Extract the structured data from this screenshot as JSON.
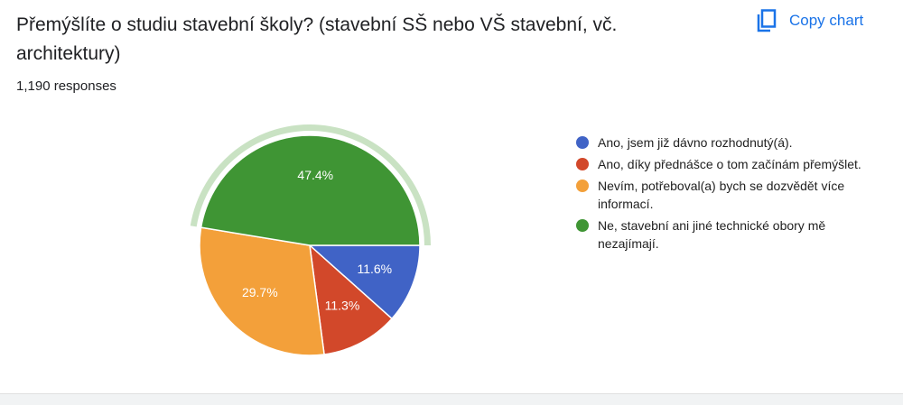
{
  "actions": {
    "copy_chart": "Copy chart"
  },
  "chart_data": {
    "type": "pie",
    "title": "Přemýšlíte o studiu stavební školy? (stavební SŠ nebo VŠ stavební, vč. architektury)",
    "subtitle": "1,190 responses",
    "categories": [
      "Ano, jsem již dávno rozhodnutý(á).",
      "Ano, díky přednášce o tom začínám přemýšlet.",
      "Nevím, potřeboval(a) bych se dozvědět více informací.",
      "Ne, stavební ani jiné technické obory mě nezajímají."
    ],
    "values": [
      11.6,
      11.3,
      29.7,
      47.4
    ],
    "value_labels": [
      "11.6%",
      "11.3%",
      "29.7%",
      "47.4%"
    ],
    "colors": [
      "#4063c6",
      "#d2482a",
      "#f3a03a",
      "#3f9534"
    ],
    "highlight_color": "#c9e2c3",
    "legend": "right"
  }
}
